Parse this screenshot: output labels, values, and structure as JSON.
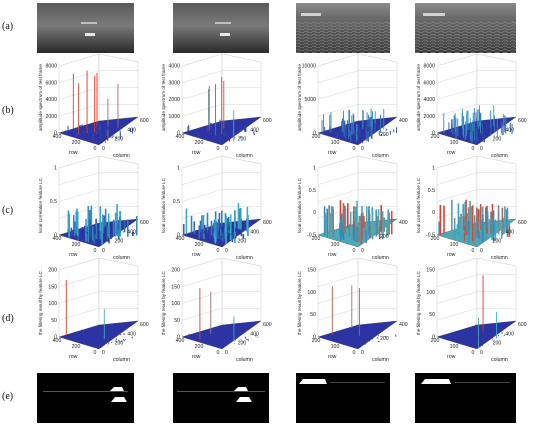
{
  "figure": {
    "row_labels": [
      "(a)",
      "(b)",
      "(c)",
      "(d)",
      "(e)"
    ],
    "rows": {
      "b": {
        "zlabel": "amplitude spectrum of test frame",
        "xlabel": "row",
        "ylabel": "column",
        "panels": [
          {
            "zticks": [
              "0",
              "2000",
              "4000",
              "6000",
              "8000"
            ],
            "xticks": [
              "400",
              "200",
              "0"
            ],
            "yticks": [
              "0",
              "200",
              "400",
              "600"
            ]
          },
          {
            "zticks": [
              "0",
              "1000",
              "2000",
              "3000",
              "4000"
            ],
            "xticks": [
              "400",
              "200",
              "0"
            ],
            "yticks": [
              "0",
              "200",
              "400",
              "600"
            ]
          },
          {
            "zticks": [
              "0",
              "5000",
              "10000"
            ],
            "xticks": [
              "200",
              "100",
              "0"
            ],
            "yticks": [
              "0",
              "200",
              "400"
            ]
          },
          {
            "zticks": [
              "0",
              "2000",
              "4000",
              "6000",
              "8000"
            ],
            "xticks": [
              "200",
              "100",
              "0"
            ],
            "yticks": [
              "0",
              "200",
              "400",
              "600"
            ]
          }
        ]
      },
      "c": {
        "zlabel": "local correlation feature LC",
        "xlabel": "row",
        "ylabel": "column",
        "panels": [
          {
            "zticks": [
              "0",
              "0.5",
              "1"
            ],
            "xticks": [
              "400",
              "200",
              "0"
            ],
            "yticks": [
              "0",
              "200",
              "400",
              "600"
            ]
          },
          {
            "zticks": [
              "0",
              "0.5",
              "1"
            ],
            "xticks": [
              "400",
              "200",
              "0"
            ],
            "yticks": [
              "0",
              "200",
              "400",
              "600"
            ]
          },
          {
            "zticks": [
              "-0.5",
              "0",
              "0.5",
              "1"
            ],
            "xticks": [
              "200",
              "100",
              "0"
            ],
            "yticks": [
              "0",
              "200",
              "400"
            ]
          },
          {
            "zticks": [
              "-0.5",
              "0",
              "0.5",
              "1"
            ],
            "xticks": [
              "200",
              "100",
              "0"
            ],
            "yticks": [
              "0",
              "200",
              "400",
              "600"
            ]
          }
        ]
      },
      "d": {
        "zlabel": "the filtering result by feature LC",
        "xlabel": "row",
        "ylabel": "column",
        "panels": [
          {
            "zticks": [
              "0",
              "50",
              "100",
              "150",
              "200"
            ],
            "xticks": [
              "400",
              "200",
              "0"
            ],
            "yticks": [
              "0",
              "200",
              "400",
              "600"
            ]
          },
          {
            "zticks": [
              "0",
              "50",
              "100",
              "150",
              "200"
            ],
            "xticks": [
              "400",
              "200",
              "0"
            ],
            "yticks": [
              "0",
              "200",
              "400",
              "600"
            ]
          },
          {
            "zticks": [
              "0",
              "50",
              "100",
              "150"
            ],
            "xticks": [
              "200",
              "100",
              "0"
            ],
            "yticks": [
              "0",
              "200",
              "400"
            ]
          },
          {
            "zticks": [
              "0",
              "50",
              "100",
              "150"
            ],
            "xticks": [
              "200",
              "100",
              "0"
            ],
            "yticks": [
              "0",
              "200",
              "400",
              "600"
            ]
          }
        ]
      }
    },
    "colors": {
      "surface_low": "#2a2fa0",
      "surface_mid": "#38b7c9",
      "surface_high": "#e33a24",
      "grid": "#c8c8c8",
      "sky_panel": "#6f6f6f",
      "sea_panel": "#4a4a4a"
    }
  }
}
